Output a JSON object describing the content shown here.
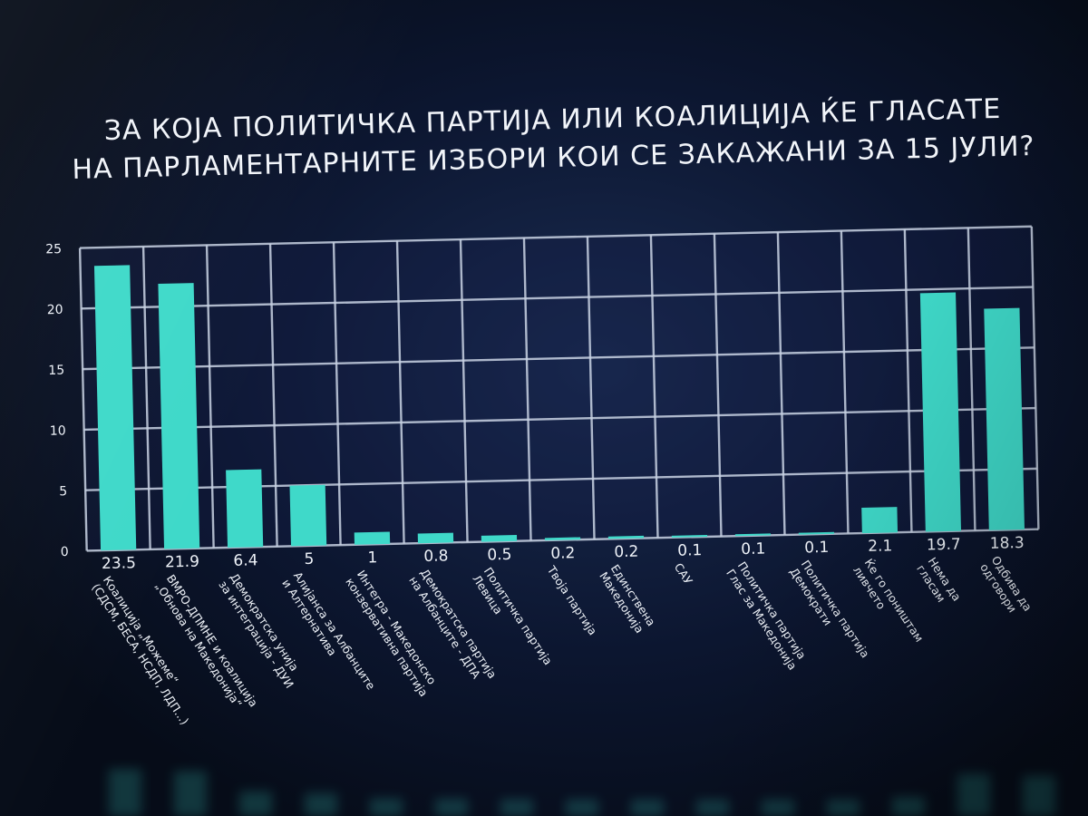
{
  "title_lines": [
    "ЗА КОЈА ПОЛИТИЧКА ПАРТИЈА ИЛИ КОАЛИЦИЈА ЌЕ ГЛАСАТЕ",
    "НА ПАРЛАМЕНТАРНИТЕ ИЗБОРИ КОИ СЕ ЗАКАЖАНИ ЗА 15 ЈУЛИ?"
  ],
  "colors": {
    "bar": "#3fd9c9",
    "grid": "#c9d3e4",
    "text": "#eef2f8"
  },
  "chart_data": {
    "type": "bar",
    "title": "ЗА КОЈА ПОЛИТИЧКА ПАРТИЈА ИЛИ КОАЛИЦИЈА ЌЕ ГЛАСАТЕ НА ПАРЛАМЕНТАРНИТЕ ИЗБОРИ КОИ СЕ ЗАКАЖАНИ ЗА 15 ЈУЛИ?",
    "categories": [
      [
        "Коалиција „Можеме“",
        "(СДСМ, БЕСА, НСДП, ЛДП...)"
      ],
      [
        "ВМРО-ДПМНЕ и коалиција",
        "„Обнова на Македонија“"
      ],
      [
        "Демократска унија",
        "за интеграција - ДУИ"
      ],
      [
        "Алијанса за Албанците",
        "и Алтернатива"
      ],
      [
        "Интегра - Македонско",
        "конзервативна партија"
      ],
      [
        "Демократска партија",
        "на Албанците - ДПА"
      ],
      [
        "Политичка партија",
        "Левица"
      ],
      [
        "Твоја партија"
      ],
      [
        "Единствена",
        "Македонија"
      ],
      [
        "САУ"
      ],
      [
        "Политичка партија",
        "Глас за Македонија"
      ],
      [
        "Политичка партија",
        "Демократи"
      ],
      [
        "Ќе го поништам",
        "ливчето"
      ],
      [
        "Нема да",
        "гласам"
      ],
      [
        "Одбива да",
        "одговори"
      ]
    ],
    "values": [
      23.5,
      21.9,
      6.4,
      5,
      1,
      0.8,
      0.5,
      0.2,
      0.2,
      0.1,
      0.1,
      0.1,
      2.1,
      19.7,
      18.3
    ],
    "value_labels": [
      "23.5",
      "21.9",
      "6.4",
      "5",
      "1",
      "0.8",
      "0.5",
      "0.2",
      "0.2",
      "0.1",
      "0.1",
      "0.1",
      "2.1",
      "19.7",
      "18.3"
    ],
    "y_ticks": [
      0,
      5,
      10,
      15,
      20,
      25
    ],
    "ylim": [
      0,
      25
    ],
    "grid": true,
    "legend": "none"
  }
}
